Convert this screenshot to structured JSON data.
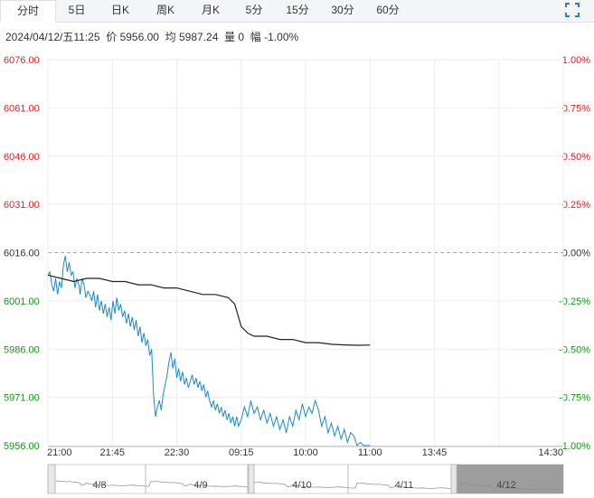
{
  "tabs": [
    {
      "label": "分时",
      "active": true
    },
    {
      "label": "5日",
      "active": false
    },
    {
      "label": "日K",
      "active": false
    },
    {
      "label": "周K",
      "active": false
    },
    {
      "label": "月K",
      "active": false
    },
    {
      "label": "5分",
      "active": false
    },
    {
      "label": "15分",
      "active": false
    },
    {
      "label": "30分",
      "active": false
    },
    {
      "label": "60分",
      "active": false
    }
  ],
  "expand_icon": "expand-icon",
  "info": {
    "datetime": "2024/04/12/五11:25",
    "price_label": "价",
    "price": "5956.00",
    "avg_label": "均",
    "avg": "5987.24",
    "volume_label": "量",
    "volume": "0",
    "change_label": "幅",
    "change": "-1.00%"
  },
  "colors": {
    "up": "#e02020",
    "down": "#109910",
    "neutral": "#333333",
    "price_line": "#1a8ac9",
    "avg_line": "#222222"
  },
  "chart_data": {
    "type": "line",
    "y_labels": [
      "6076.00",
      "6061.00",
      "6046.00",
      "6031.00",
      "6016.00",
      "6001.00",
      "5986.00",
      "5971.00",
      "5956.00"
    ],
    "pct_labels": [
      "1.00%",
      "0.75%",
      "0.50%",
      "0.25%",
      "0.00%",
      "-0.25%",
      "-0.50%",
      "-0.75%",
      "-1.00%"
    ],
    "ylim": [
      5956,
      6076
    ],
    "prev_close": 6016,
    "x_ticks": [
      "21:00",
      "21:45",
      "22:30",
      "09:15",
      "10:00",
      "11:00",
      "13:45",
      "14:30"
    ],
    "session_slots": 8,
    "series": [
      {
        "name": "价",
        "x": [
          0.0,
          0.03,
          0.06,
          0.09,
          0.12,
          0.15,
          0.18,
          0.21,
          0.24,
          0.27,
          0.3,
          0.33,
          0.36,
          0.39,
          0.42,
          0.45,
          0.48,
          0.5,
          0.53,
          0.56,
          0.59,
          0.62,
          0.65,
          0.68,
          0.71,
          0.74,
          0.77,
          0.8,
          0.83,
          0.86,
          0.89,
          0.92,
          0.95,
          0.98,
          1.01,
          1.04,
          1.07,
          1.1,
          1.13,
          1.16,
          1.19,
          1.22,
          1.25,
          1.28,
          1.31,
          1.34,
          1.37,
          1.4,
          1.43,
          1.46,
          1.49,
          1.52,
          1.55,
          1.58,
          1.61,
          1.64,
          1.67,
          1.7,
          1.73,
          1.76,
          1.79,
          1.82,
          1.85,
          1.88,
          1.91,
          1.94,
          1.97,
          2.0,
          2.03,
          2.06,
          2.09,
          2.12,
          2.15,
          2.18,
          2.21,
          2.24,
          2.27,
          2.3,
          2.33,
          2.36,
          2.39,
          2.42,
          2.45,
          2.48,
          2.51,
          2.54,
          2.57,
          2.6,
          2.63,
          2.66,
          2.69,
          2.72,
          2.75,
          2.78,
          2.81,
          2.84,
          2.87,
          2.9,
          2.93,
          2.96,
          3.0,
          3.05,
          3.1,
          3.15,
          3.2,
          3.25,
          3.3,
          3.35,
          3.4,
          3.45,
          3.5,
          3.55,
          3.6,
          3.65,
          3.7,
          3.75,
          3.8,
          3.85,
          3.9,
          3.95,
          4.0,
          4.05,
          4.1,
          4.15,
          4.2,
          4.25,
          4.3,
          4.35,
          4.4,
          4.45,
          4.5,
          4.55,
          4.6,
          4.65,
          4.7,
          4.75,
          4.8,
          4.85,
          4.9,
          4.95,
          5.0
        ],
        "values": [
          6009,
          6010,
          6006,
          6004,
          6008,
          6003,
          6007,
          6005,
          6012,
          6015,
          6010,
          6013,
          6009,
          6010,
          6005,
          6008,
          6006,
          6003,
          6008,
          6006,
          6002,
          6004,
          6003,
          6001,
          6004,
          5999,
          6003,
          5998,
          6001,
          5997,
          6000,
          5996,
          5999,
          5995,
          6001,
          5997,
          6002,
          5998,
          6000,
          5996,
          5998,
          5994,
          5997,
          5993,
          5996,
          5992,
          5995,
          5990,
          5993,
          5988,
          5991,
          5987,
          5989,
          5984,
          5986,
          5972,
          5965,
          5968,
          5970,
          5967,
          5972,
          5975,
          5978,
          5982,
          5985,
          5980,
          5983,
          5977,
          5980,
          5976,
          5979,
          5975,
          5977,
          5974,
          5976,
          5978,
          5975,
          5977,
          5974,
          5976,
          5973,
          5975,
          5971,
          5973,
          5970,
          5968,
          5970,
          5967,
          5969,
          5966,
          5968,
          5965,
          5967,
          5964,
          5966,
          5963,
          5965,
          5962,
          5965,
          5962,
          5964,
          5968,
          5965,
          5970,
          5966,
          5968,
          5964,
          5967,
          5963,
          5966,
          5962,
          5965,
          5961,
          5964,
          5960,
          5965,
          5962,
          5967,
          5964,
          5969,
          5965,
          5968,
          5966,
          5970,
          5967,
          5962,
          5965,
          5960,
          5963,
          5959,
          5962,
          5958,
          5961,
          5957,
          5960,
          5959,
          5956,
          5957,
          5956,
          5956,
          5956
        ],
        "color": "#1a8ac9"
      },
      {
        "name": "均",
        "x": [
          0.0,
          0.2,
          0.4,
          0.6,
          0.8,
          1.0,
          1.2,
          1.4,
          1.6,
          1.8,
          2.0,
          2.2,
          2.4,
          2.6,
          2.8,
          2.9,
          3.0,
          3.1,
          3.2,
          3.4,
          3.6,
          3.8,
          4.0,
          4.2,
          4.4,
          4.6,
          4.8,
          5.0
        ],
        "values": [
          6009,
          6008,
          6007,
          6008,
          6008,
          6007,
          6007,
          6006,
          6006,
          6005,
          6005,
          6004,
          6003,
          6003,
          6002,
          6000,
          5993,
          5991,
          5990,
          5990,
          5989,
          5989,
          5988,
          5988,
          5987.5,
          5987.3,
          5987.2,
          5987.24
        ],
        "color": "#222222"
      }
    ],
    "grid": true
  },
  "navigator": {
    "labels": [
      "4/8",
      "4/9",
      "4/10",
      "4/11",
      "4/12"
    ]
  }
}
